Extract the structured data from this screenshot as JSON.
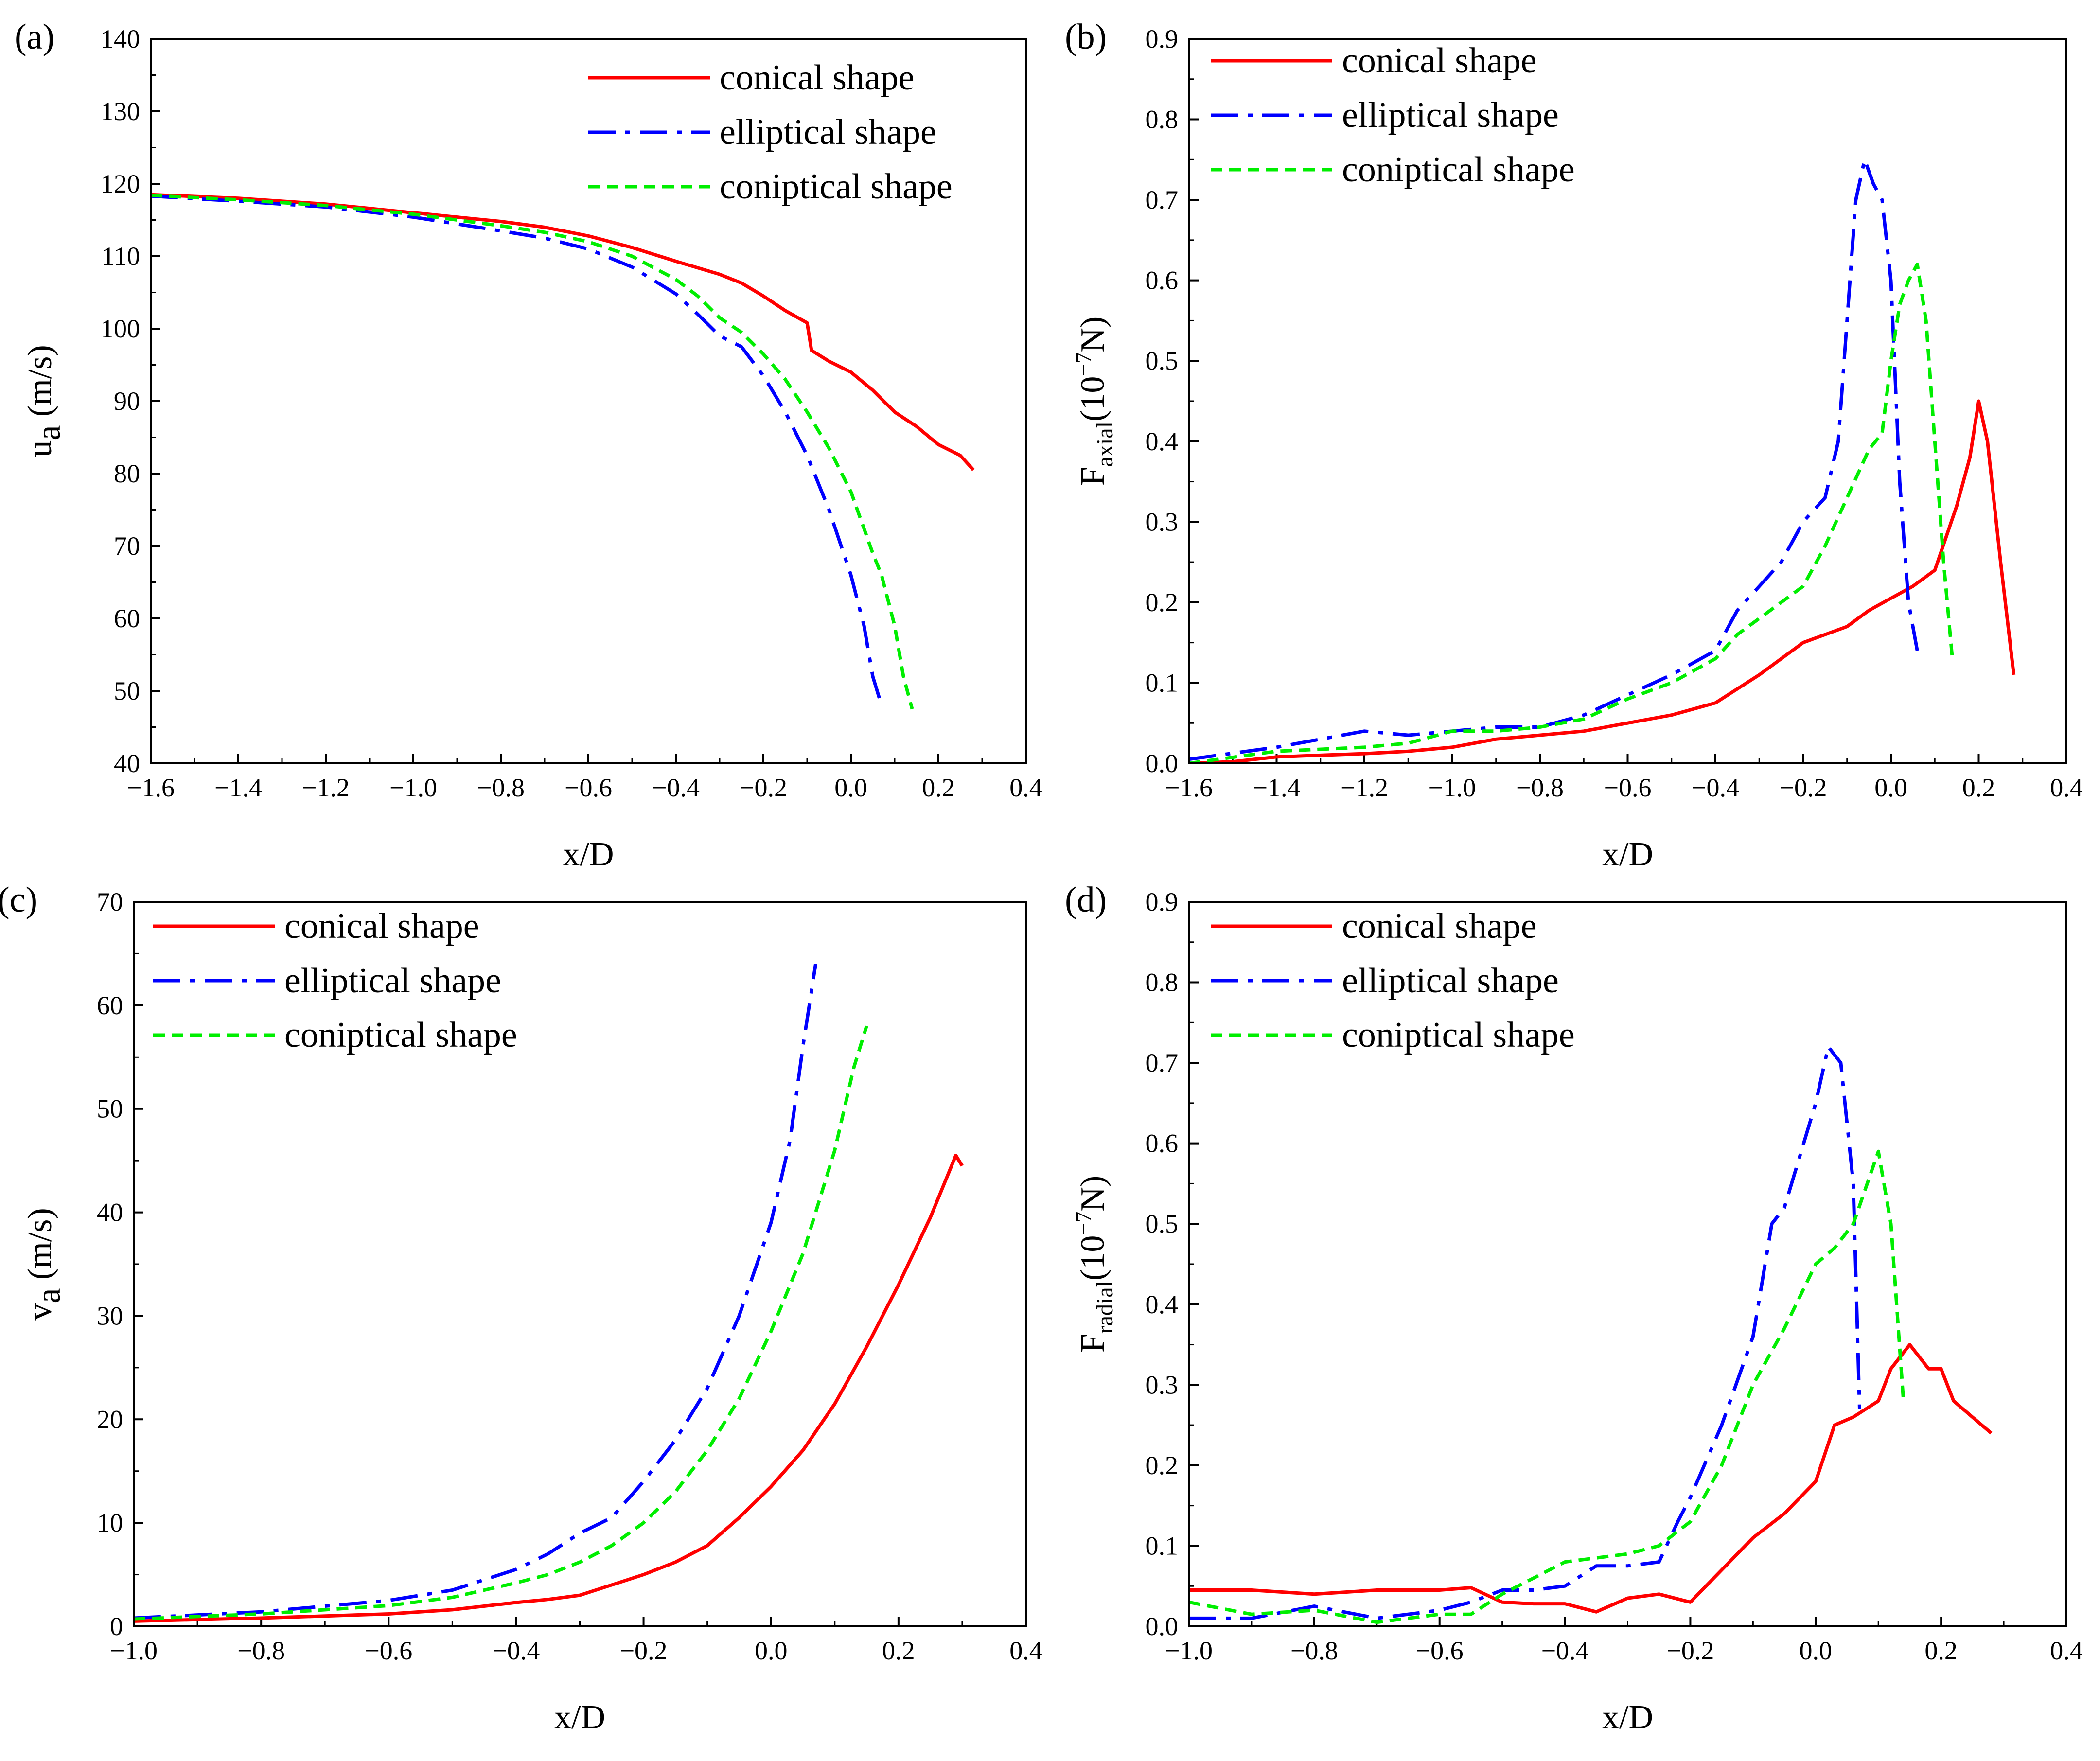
{
  "chart_data": [
    {
      "type": "line",
      "panel_label": "(a)",
      "xlabel": "x/D",
      "ylabel_main": "u",
      "ylabel_sub": "a",
      "ylabel_tail": " (m/s)",
      "xlim": [
        -1.6,
        0.4
      ],
      "ylim": [
        40,
        140
      ],
      "xticks": [
        -1.6,
        -1.4,
        -1.2,
        -1.0,
        -0.8,
        -0.6,
        -0.4,
        -0.2,
        0.0,
        0.2,
        0.4
      ],
      "xtick_labels": [
        "−1.6",
        "−1.4",
        "−1.2",
        "−1.0",
        "−0.8",
        "−0.6",
        "−0.4",
        "−0.2",
        "0.0",
        "0.2",
        "0.4"
      ],
      "yticks": [
        40,
        50,
        60,
        70,
        80,
        90,
        100,
        110,
        120,
        130,
        140
      ],
      "ytick_labels": [
        "40",
        "50",
        "60",
        "70",
        "80",
        "90",
        "100",
        "110",
        "120",
        "130",
        "140"
      ],
      "legend_position": "top-right",
      "series": [
        {
          "name": "conical shape",
          "color": "#ff0000",
          "style": "solid",
          "x": [
            -1.6,
            -1.4,
            -1.2,
            -1.0,
            -0.8,
            -0.7,
            -0.6,
            -0.5,
            -0.4,
            -0.3,
            -0.25,
            -0.2,
            -0.15,
            -0.1,
            -0.09,
            -0.05,
            0.0,
            0.05,
            0.1,
            0.15,
            0.2,
            0.25,
            0.28
          ],
          "y": [
            118.5,
            118.0,
            117.2,
            116.0,
            114.8,
            114.0,
            112.8,
            111.2,
            109.3,
            107.5,
            106.3,
            104.5,
            102.5,
            100.8,
            97.0,
            95.5,
            94.0,
            91.5,
            88.5,
            86.5,
            84.0,
            82.5,
            80.5
          ]
        },
        {
          "name": "elliptical shape",
          "color": "#0000ff",
          "style": "dashdot",
          "x": [
            -1.6,
            -1.4,
            -1.2,
            -1.0,
            -0.8,
            -0.7,
            -0.6,
            -0.5,
            -0.4,
            -0.35,
            -0.3,
            -0.25,
            -0.2,
            -0.15,
            -0.1,
            -0.05,
            0.0,
            0.03,
            0.05,
            0.07
          ],
          "y": [
            118.3,
            117.6,
            116.8,
            115.4,
            113.5,
            112.5,
            111.0,
            108.5,
            104.8,
            102.0,
            99.0,
            97.5,
            93.5,
            88.5,
            82.5,
            75.0,
            66.0,
            59.0,
            52.0,
            48.0
          ]
        },
        {
          "name": "coniptical shape",
          "color": "#00ee00",
          "style": "dashed",
          "x": [
            -1.6,
            -1.4,
            -1.2,
            -1.0,
            -0.8,
            -0.7,
            -0.6,
            -0.5,
            -0.4,
            -0.35,
            -0.3,
            -0.25,
            -0.2,
            -0.15,
            -0.1,
            -0.05,
            0.0,
            0.05,
            0.07,
            0.1,
            0.12,
            0.14
          ],
          "y": [
            118.4,
            117.8,
            117.0,
            115.8,
            114.2,
            113.3,
            112.0,
            110.0,
            106.8,
            104.5,
            101.5,
            99.5,
            96.5,
            93.0,
            88.5,
            83.5,
            77.5,
            69.0,
            66.0,
            59.0,
            52.0,
            47.5
          ]
        }
      ]
    },
    {
      "type": "line",
      "panel_label": "(b)",
      "xlabel": "x/D",
      "ylabel_main": "F",
      "ylabel_sub": "axial",
      "ylabel_tail": "(10",
      "ylabel_sup": "−7",
      "ylabel_end": "N)",
      "xlim": [
        -1.6,
        0.4
      ],
      "ylim": [
        0,
        0.9
      ],
      "xticks": [
        -1.6,
        -1.4,
        -1.2,
        -1.0,
        -0.8,
        -0.6,
        -0.4,
        -0.2,
        0.0,
        0.2,
        0.4
      ],
      "xtick_labels": [
        "−1.6",
        "−1.4",
        "−1.2",
        "−1.0",
        "−0.8",
        "−0.6",
        "−0.4",
        "−0.2",
        "0.0",
        "0.2",
        "0.4"
      ],
      "yticks": [
        0,
        0.1,
        0.2,
        0.3,
        0.4,
        0.5,
        0.6,
        0.7,
        0.8,
        0.9
      ],
      "ytick_labels": [
        "0.0",
        "0.1",
        "0.2",
        "0.3",
        "0.4",
        "0.5",
        "0.6",
        "0.7",
        "0.8",
        "0.9"
      ],
      "legend_position": "top-left",
      "series": [
        {
          "name": "conical shape",
          "color": "#ff0000",
          "style": "solid",
          "x": [
            -1.6,
            -1.5,
            -1.4,
            -1.3,
            -1.2,
            -1.1,
            -1.0,
            -0.9,
            -0.8,
            -0.7,
            -0.6,
            -0.5,
            -0.4,
            -0.3,
            -0.2,
            -0.1,
            -0.05,
            0.0,
            0.05,
            0.1,
            0.15,
            0.18,
            0.2,
            0.22,
            0.25,
            0.28
          ],
          "y": [
            0.0,
            0.002,
            0.008,
            0.01,
            0.012,
            0.015,
            0.02,
            0.03,
            0.035,
            0.04,
            0.05,
            0.06,
            0.075,
            0.11,
            0.15,
            0.17,
            0.19,
            0.205,
            0.22,
            0.24,
            0.32,
            0.38,
            0.45,
            0.4,
            0.25,
            0.11
          ]
        },
        {
          "name": "elliptical shape",
          "color": "#0000ff",
          "style": "dashdot",
          "x": [
            -1.6,
            -1.4,
            -1.2,
            -1.1,
            -1.0,
            -0.9,
            -0.8,
            -0.7,
            -0.6,
            -0.5,
            -0.4,
            -0.35,
            -0.3,
            -0.25,
            -0.2,
            -0.15,
            -0.12,
            -0.1,
            -0.08,
            -0.06,
            -0.04,
            -0.02,
            0.0,
            0.02,
            0.04,
            0.06
          ],
          "y": [
            0.005,
            0.02,
            0.04,
            0.035,
            0.04,
            0.045,
            0.045,
            0.06,
            0.085,
            0.11,
            0.14,
            0.19,
            0.22,
            0.25,
            0.3,
            0.33,
            0.4,
            0.55,
            0.7,
            0.75,
            0.72,
            0.7,
            0.6,
            0.35,
            0.2,
            0.14
          ]
        },
        {
          "name": "coniptical shape",
          "color": "#00ee00",
          "style": "dashed",
          "x": [
            -1.6,
            -1.4,
            -1.2,
            -1.1,
            -1.0,
            -0.9,
            -0.8,
            -0.7,
            -0.6,
            -0.5,
            -0.4,
            -0.35,
            -0.3,
            -0.2,
            -0.15,
            -0.1,
            -0.05,
            -0.02,
            0.0,
            0.02,
            0.04,
            0.06,
            0.08,
            0.1,
            0.12,
            0.14
          ],
          "y": [
            0.0,
            0.015,
            0.02,
            0.025,
            0.04,
            0.04,
            0.045,
            0.055,
            0.08,
            0.1,
            0.13,
            0.16,
            0.18,
            0.22,
            0.27,
            0.33,
            0.39,
            0.41,
            0.5,
            0.57,
            0.6,
            0.62,
            0.55,
            0.4,
            0.25,
            0.13
          ]
        }
      ]
    },
    {
      "type": "line",
      "panel_label": "(c)",
      "xlabel": "x/D",
      "ylabel_main": "v",
      "ylabel_sub": "a",
      "ylabel_tail": " (m/s)",
      "xlim": [
        -1.0,
        0.4
      ],
      "ylim": [
        0,
        70
      ],
      "xticks": [
        -1.0,
        -0.8,
        -0.6,
        -0.4,
        -0.2,
        0.0,
        0.2,
        0.4
      ],
      "xtick_labels": [
        "−1.0",
        "−0.8",
        "−0.6",
        "−0.4",
        "−0.2",
        "0.0",
        "0.2",
        "0.4"
      ],
      "yticks": [
        0,
        10,
        20,
        30,
        40,
        50,
        60,
        70
      ],
      "ytick_labels": [
        "0",
        "10",
        "20",
        "30",
        "40",
        "50",
        "60",
        "70"
      ],
      "legend_position": "top-left",
      "series": [
        {
          "name": "conical shape",
          "color": "#ff0000",
          "style": "solid",
          "x": [
            -1.0,
            -0.8,
            -0.6,
            -0.5,
            -0.4,
            -0.35,
            -0.3,
            -0.25,
            -0.2,
            -0.15,
            -0.1,
            -0.05,
            0.0,
            0.05,
            0.1,
            0.15,
            0.2,
            0.25,
            0.29,
            0.3
          ],
          "y": [
            0.5,
            0.8,
            1.2,
            1.6,
            2.3,
            2.6,
            3.0,
            4.0,
            5.0,
            6.2,
            7.8,
            10.5,
            13.5,
            17.0,
            21.5,
            27.0,
            33.0,
            39.5,
            45.5,
            44.5
          ]
        },
        {
          "name": "elliptical shape",
          "color": "#0000ff",
          "style": "dashdot",
          "x": [
            -1.0,
            -0.8,
            -0.6,
            -0.5,
            -0.4,
            -0.35,
            -0.3,
            -0.25,
            -0.2,
            -0.15,
            -0.1,
            -0.05,
            0.0,
            0.03,
            0.05,
            0.07
          ],
          "y": [
            0.8,
            1.4,
            2.5,
            3.5,
            5.5,
            7.0,
            9.0,
            10.5,
            14.0,
            18.0,
            23.0,
            30.0,
            39.0,
            47.0,
            56.0,
            64.0
          ]
        },
        {
          "name": "coniptical shape",
          "color": "#00ee00",
          "style": "dashed",
          "x": [
            -1.0,
            -0.8,
            -0.6,
            -0.5,
            -0.4,
            -0.35,
            -0.3,
            -0.25,
            -0.2,
            -0.15,
            -0.1,
            -0.05,
            0.0,
            0.05,
            0.1,
            0.13,
            0.15
          ],
          "y": [
            0.7,
            1.2,
            2.0,
            2.8,
            4.2,
            5.0,
            6.2,
            7.8,
            10.0,
            13.0,
            17.0,
            22.0,
            28.5,
            36.0,
            46.0,
            54.0,
            58.0
          ]
        }
      ]
    },
    {
      "type": "line",
      "panel_label": "(d)",
      "xlabel": "x/D",
      "ylabel_main": "F",
      "ylabel_sub": "radial",
      "ylabel_tail": "(10",
      "ylabel_sup": "−7",
      "ylabel_end": "N)",
      "xlim": [
        -1.0,
        0.4
      ],
      "ylim": [
        0,
        0.9
      ],
      "xticks": [
        -1.0,
        -0.8,
        -0.6,
        -0.4,
        -0.2,
        0.0,
        0.2,
        0.4
      ],
      "xtick_labels": [
        "−1.0",
        "−0.8",
        "−0.6",
        "−0.4",
        "−0.2",
        "0.0",
        "0.2",
        "0.4"
      ],
      "yticks": [
        0,
        0.1,
        0.2,
        0.3,
        0.4,
        0.5,
        0.6,
        0.7,
        0.8,
        0.9
      ],
      "ytick_labels": [
        "0.0",
        "0.1",
        "0.2",
        "0.3",
        "0.4",
        "0.5",
        "0.6",
        "0.7",
        "0.8",
        "0.9"
      ],
      "legend_position": "top-left",
      "series": [
        {
          "name": "conical shape",
          "color": "#ff0000",
          "style": "solid",
          "x": [
            -1.0,
            -0.9,
            -0.8,
            -0.7,
            -0.6,
            -0.55,
            -0.5,
            -0.45,
            -0.4,
            -0.35,
            -0.3,
            -0.25,
            -0.2,
            -0.15,
            -0.1,
            -0.05,
            0.0,
            0.03,
            0.06,
            0.1,
            0.12,
            0.15,
            0.18,
            0.2,
            0.22,
            0.25,
            0.28
          ],
          "y": [
            0.045,
            0.045,
            0.04,
            0.045,
            0.045,
            0.048,
            0.03,
            0.028,
            0.028,
            0.018,
            0.035,
            0.04,
            0.03,
            0.07,
            0.11,
            0.14,
            0.18,
            0.25,
            0.26,
            0.28,
            0.32,
            0.35,
            0.32,
            0.32,
            0.28,
            0.26,
            0.24
          ]
        },
        {
          "name": "elliptical shape",
          "color": "#0000ff",
          "style": "dashdot",
          "x": [
            -1.0,
            -0.9,
            -0.8,
            -0.7,
            -0.6,
            -0.55,
            -0.5,
            -0.45,
            -0.4,
            -0.35,
            -0.3,
            -0.25,
            -0.22,
            -0.2,
            -0.15,
            -0.1,
            -0.07,
            -0.05,
            0.0,
            0.02,
            0.04,
            0.06,
            0.07
          ],
          "y": [
            0.01,
            0.01,
            0.025,
            0.01,
            0.02,
            0.03,
            0.045,
            0.045,
            0.05,
            0.075,
            0.075,
            0.08,
            0.13,
            0.16,
            0.25,
            0.36,
            0.5,
            0.52,
            0.65,
            0.72,
            0.7,
            0.55,
            0.27
          ]
        },
        {
          "name": "coniptical shape",
          "color": "#00ee00",
          "style": "dashed",
          "x": [
            -1.0,
            -0.9,
            -0.8,
            -0.7,
            -0.6,
            -0.55,
            -0.5,
            -0.45,
            -0.4,
            -0.35,
            -0.3,
            -0.25,
            -0.2,
            -0.15,
            -0.1,
            -0.05,
            0.0,
            0.03,
            0.06,
            0.1,
            0.12,
            0.14
          ],
          "y": [
            0.03,
            0.015,
            0.02,
            0.005,
            0.015,
            0.015,
            0.04,
            0.06,
            0.08,
            0.085,
            0.09,
            0.1,
            0.13,
            0.2,
            0.3,
            0.37,
            0.45,
            0.47,
            0.5,
            0.59,
            0.5,
            0.28
          ]
        }
      ]
    }
  ]
}
